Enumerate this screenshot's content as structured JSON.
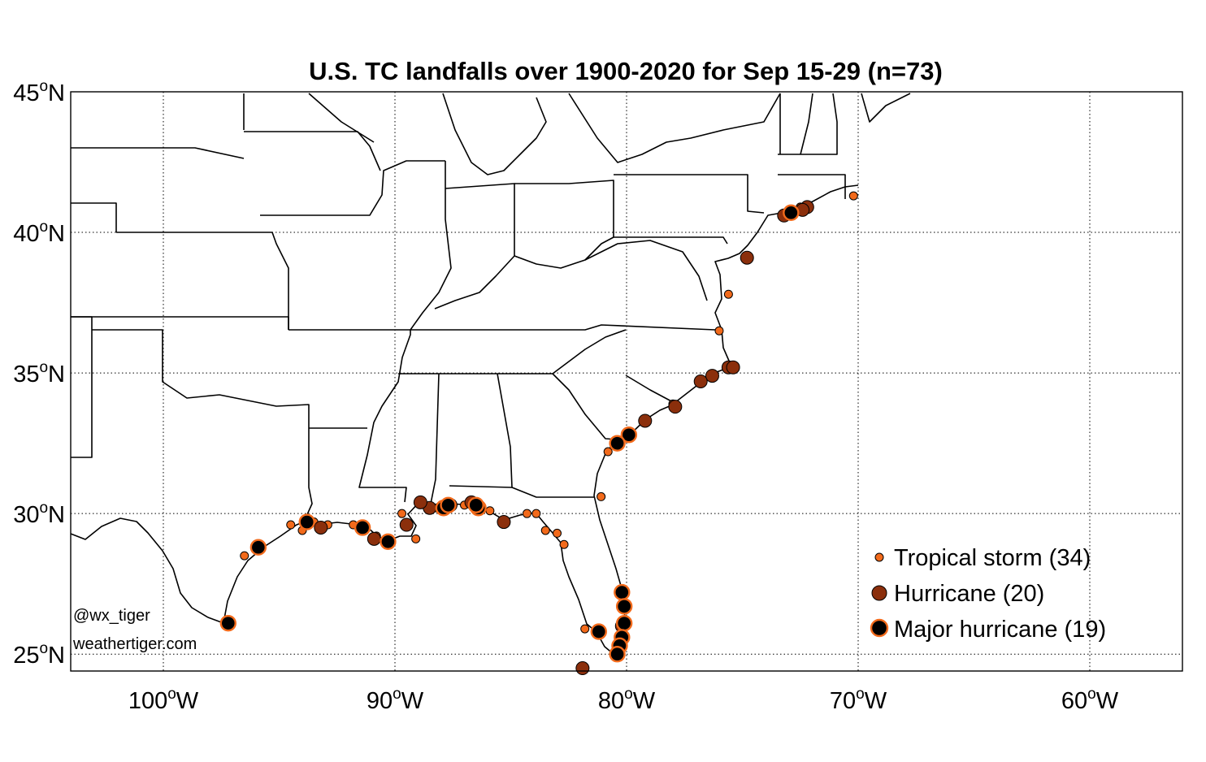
{
  "title": "U.S. TC landfalls over 1900-2020 for Sep 15-29 (n=73)",
  "axis": {
    "lat_range": [
      24.4,
      45
    ],
    "lon_range": [
      -104,
      -56
    ],
    "lat_ticks": [
      {
        "value": 45,
        "num": "45",
        "deg": "o",
        "hem": "N"
      },
      {
        "value": 40,
        "num": "40",
        "deg": "o",
        "hem": "N"
      },
      {
        "value": 35,
        "num": "35",
        "deg": "o",
        "hem": "N"
      },
      {
        "value": 30,
        "num": "30",
        "deg": "o",
        "hem": "N"
      },
      {
        "value": 25,
        "num": "25",
        "deg": "o",
        "hem": "N"
      }
    ],
    "lon_ticks": [
      {
        "value": -100,
        "num": "100",
        "deg": "o",
        "hem": "W"
      },
      {
        "value": -90,
        "num": "90",
        "deg": "o",
        "hem": "W"
      },
      {
        "value": -80,
        "num": "80",
        "deg": "o",
        "hem": "W"
      },
      {
        "value": -70,
        "num": "70",
        "deg": "o",
        "hem": "W"
      },
      {
        "value": -60,
        "num": "60",
        "deg": "o",
        "hem": "W"
      }
    ],
    "grid": true
  },
  "colors": {
    "tropical_storm": "#f26a1b",
    "hurricane": "#8b2f0c",
    "major_fill": "#000000",
    "major_edge": "#f26a1b",
    "lines": "#000000"
  },
  "legend": {
    "position": "lower-right",
    "items": [
      {
        "category": "tropical_storm",
        "label": "Tropical storm (34)"
      },
      {
        "category": "hurricane",
        "label": "Hurricane (20)"
      },
      {
        "category": "major",
        "label": "Major hurricane (19)"
      }
    ]
  },
  "credits": {
    "handle": "@wx_tiger",
    "site": "weathertiger.com"
  },
  "chart_data": {
    "type": "scatter",
    "title": "U.S. TC landfalls over 1900-2020 for Sep 15-29 (n=73)",
    "x_unit": "longitude",
    "y_unit": "latitude",
    "series": [
      {
        "name": "Tropical storm (34)",
        "category": "tropical_storm",
        "points": [
          [
            -70.2,
            41.3
          ],
          [
            -75.6,
            37.8
          ],
          [
            -76.0,
            36.5
          ],
          [
            -80.8,
            32.2
          ],
          [
            -81.1,
            30.6
          ],
          [
            -82.7,
            28.9
          ],
          [
            -83.0,
            29.3
          ],
          [
            -83.9,
            30.0
          ],
          [
            -84.3,
            30.0
          ],
          [
            -85.9,
            30.1
          ],
          [
            -87.5,
            30.3
          ],
          [
            -88.0,
            30.3
          ],
          [
            -89.1,
            29.1
          ],
          [
            -91.8,
            29.6
          ],
          [
            -92.9,
            29.6
          ],
          [
            -94.0,
            29.4
          ],
          [
            -94.5,
            29.6
          ],
          [
            -96.5,
            28.5
          ],
          [
            -95.8,
            28.8
          ],
          [
            -81.8,
            25.9
          ],
          [
            -80.2,
            25.7
          ],
          [
            -80.3,
            25.1
          ],
          [
            -80.1,
            26.0
          ],
          [
            -76.3,
            34.9
          ],
          [
            -75.5,
            35.2
          ],
          [
            -78.0,
            33.9
          ],
          [
            -83.5,
            29.4
          ],
          [
            -87.0,
            30.3
          ],
          [
            -86.5,
            30.4
          ],
          [
            -88.2,
            30.2
          ],
          [
            -89.7,
            30.0
          ],
          [
            -90.8,
            29.2
          ],
          [
            -93.5,
            29.7
          ],
          [
            -72.5,
            40.9
          ]
        ]
      },
      {
        "name": "Hurricane (20)",
        "category": "hurricane",
        "points": [
          [
            -72.2,
            40.9
          ],
          [
            -73.2,
            40.6
          ],
          [
            -74.8,
            39.1
          ],
          [
            -75.6,
            35.2
          ],
          [
            -76.3,
            34.9
          ],
          [
            -76.8,
            34.7
          ],
          [
            -77.9,
            33.8
          ],
          [
            -79.2,
            33.3
          ],
          [
            -85.3,
            29.7
          ],
          [
            -86.7,
            30.4
          ],
          [
            -87.6,
            30.3
          ],
          [
            -88.5,
            30.2
          ],
          [
            -88.9,
            30.4
          ],
          [
            -89.5,
            29.6
          ],
          [
            -90.9,
            29.1
          ],
          [
            -93.2,
            29.5
          ],
          [
            -81.9,
            24.5
          ],
          [
            -80.2,
            26.0
          ],
          [
            -75.4,
            35.2
          ],
          [
            -72.4,
            40.8
          ]
        ]
      },
      {
        "name": "Major hurricane (19)",
        "category": "major",
        "points": [
          [
            -72.9,
            40.7
          ],
          [
            -79.9,
            32.8
          ],
          [
            -80.4,
            32.5
          ],
          [
            -86.4,
            30.2
          ],
          [
            -87.9,
            30.2
          ],
          [
            -90.3,
            29.0
          ],
          [
            -91.4,
            29.5
          ],
          [
            -93.8,
            29.7
          ],
          [
            -95.9,
            28.8
          ],
          [
            -97.2,
            26.1
          ],
          [
            -80.2,
            27.2
          ],
          [
            -80.1,
            26.7
          ],
          [
            -80.1,
            26.1
          ],
          [
            -80.2,
            25.6
          ],
          [
            -80.3,
            25.3
          ],
          [
            -80.4,
            25.0
          ],
          [
            -81.2,
            25.8
          ],
          [
            -87.7,
            30.3
          ],
          [
            -86.5,
            30.3
          ]
        ]
      }
    ]
  }
}
